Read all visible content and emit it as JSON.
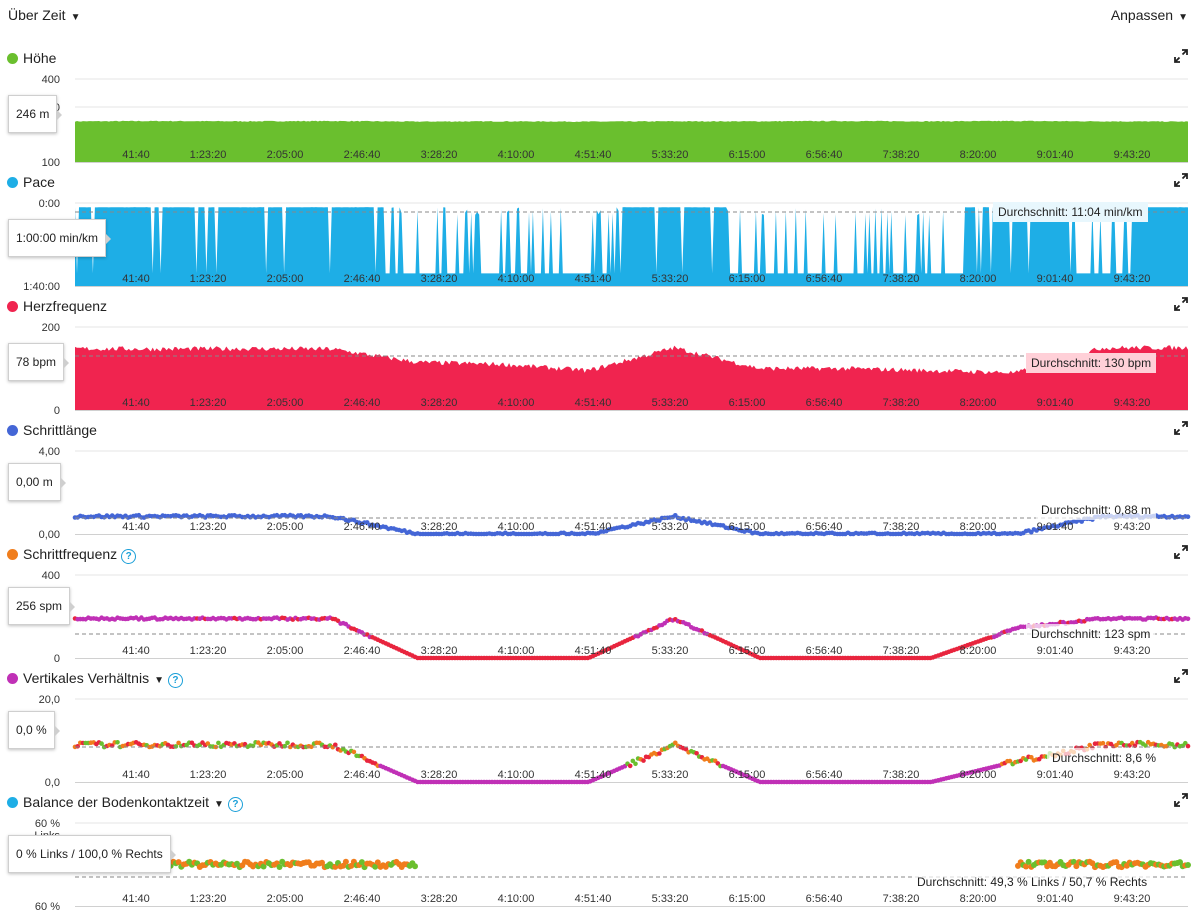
{
  "header": {
    "left_dropdown": "Über Zeit",
    "right_dropdown": "Anpassen"
  },
  "x_ticks": [
    "41:40",
    "1:23:20",
    "2:05:00",
    "2:46:40",
    "3:28:20",
    "4:10:00",
    "4:51:40",
    "5:33:20",
    "6:15:00",
    "6:56:40",
    "7:38:20",
    "8:20:00",
    "9:01:40",
    "9:43:20"
  ],
  "panels": [
    {
      "id": "hoehe",
      "title": "Höhe",
      "color": "#6abf2e",
      "ymax_label": "400",
      "ymid_label": "300",
      "ymin_label": "100",
      "ymin_extra": "",
      "tooltip": "246 m",
      "average": "",
      "help": false,
      "dropdown": false
    },
    {
      "id": "pace",
      "title": "Pace",
      "color": "#1eaee6",
      "ymax_label": "0:00",
      "ymid_label": "",
      "ymin_label": "1:40:00",
      "ymin_extra": "",
      "tooltip": "1:00:00 min/km",
      "average": "Durchschnitt: 11:04 min/km",
      "help": false,
      "dropdown": false
    },
    {
      "id": "hr",
      "title": "Herzfrequenz",
      "color": "#f0244f",
      "ymax_label": "200",
      "ymid_label": "",
      "ymin_label": "0",
      "ymin_extra": "",
      "tooltip": "78 bpm",
      "average": "Durchschnitt: 130 bpm",
      "help": false,
      "dropdown": false
    },
    {
      "id": "stride",
      "title": "Schrittlänge",
      "color": "#4466d6",
      "ymax_label": "4,00",
      "ymid_label": "",
      "ymin_label": "0,00",
      "ymin_extra": "",
      "tooltip": "0,00 m",
      "average": "Durchschnitt: 0,88 m",
      "help": false,
      "dropdown": false
    },
    {
      "id": "cadence",
      "title": "Schrittfrequenz",
      "color": "#f07d1c",
      "ymax_label": "400",
      "ymid_label": "",
      "ymin_label": "0",
      "ymin_extra": "",
      "tooltip": "256 spm",
      "average": "Durchschnitt: 123 spm",
      "help": true,
      "dropdown": false
    },
    {
      "id": "vratio",
      "title": "Vertikales Verhältnis",
      "color": "#c030b6",
      "ymax_label": "20,0",
      "ymid_label": "",
      "ymin_label": "0,0",
      "ymin_extra": "",
      "tooltip": "0,0 %",
      "average": "Durchschnitt: 8,6 %",
      "help": true,
      "dropdown": true
    },
    {
      "id": "gct",
      "title": "Balance der Bodenkontaktzeit",
      "color": "#1eaee6",
      "ymax_label": "60 %",
      "ymid_label": "Links",
      "ymin_label": "60 %",
      "ymin_extra": "",
      "tooltip": "0 % Links / 100,0 % Rechts",
      "average": "Durchschnitt: 49,3 % Links / 50,7 % Rechts",
      "help": true,
      "dropdown": true
    }
  ],
  "chart_data": [
    {
      "type": "area",
      "title": "Höhe",
      "ylabel": "",
      "ylim": [
        100,
        400
      ],
      "x": [
        "41:40",
        "1:23:20",
        "2:05:00",
        "2:46:40",
        "3:28:20",
        "4:10:00",
        "4:51:40",
        "5:33:20",
        "6:15:00",
        "6:56:40",
        "7:38:20",
        "8:20:00",
        "9:01:40",
        "9:43:20"
      ],
      "values": [
        247,
        248,
        247,
        248,
        246,
        247,
        246,
        247,
        247,
        248,
        247,
        248,
        247,
        246
      ]
    },
    {
      "type": "area",
      "title": "Pace",
      "ylabel": "",
      "ylim": [
        "0:00",
        "1:40:00"
      ],
      "x": [
        "41:40",
        "1:23:20",
        "2:05:00",
        "2:46:40",
        "3:28:20",
        "4:10:00",
        "4:51:40",
        "5:33:20",
        "6:15:00",
        "6:56:40",
        "7:38:20",
        "8:20:00",
        "9:01:40",
        "9:43:20"
      ],
      "values": [
        "0:10",
        "0:10",
        "0:10",
        "0:10",
        "1:20:00",
        "1:20:00",
        "1:20:00",
        "0:10",
        "1:20:00",
        "1:20:00",
        "1:20:00",
        "0:10",
        "1:20:00",
        "0:10"
      ]
    },
    {
      "type": "area",
      "title": "Herzfrequenz",
      "ylabel": "",
      "ylim": [
        0,
        200
      ],
      "x": [
        "41:40",
        "1:23:20",
        "2:05:00",
        "2:46:40",
        "3:28:20",
        "4:10:00",
        "4:51:40",
        "5:33:20",
        "6:15:00",
        "6:56:40",
        "7:38:20",
        "8:20:00",
        "9:01:40",
        "9:43:20"
      ],
      "values": [
        148,
        147,
        148,
        147,
        115,
        110,
        95,
        150,
        100,
        100,
        95,
        90,
        150,
        150
      ]
    },
    {
      "type": "scatter",
      "title": "Schrittlänge",
      "ylabel": "",
      "ylim": [
        0,
        4
      ],
      "x": [
        "41:40",
        "1:23:20",
        "2:05:00",
        "2:46:40",
        "3:28:20",
        "4:10:00",
        "4:51:40",
        "5:33:20",
        "6:15:00",
        "6:56:40",
        "7:38:20",
        "8:20:00",
        "9:01:40",
        "9:43:20"
      ],
      "values": [
        0.85,
        0.85,
        0.85,
        0.85,
        0.0,
        0.0,
        0.0,
        0.85,
        0.0,
        0.0,
        0.0,
        0.0,
        0.85,
        0.85
      ]
    },
    {
      "type": "scatter",
      "title": "Schrittfrequenz",
      "ylabel": "",
      "ylim": [
        0,
        400
      ],
      "x": [
        "41:40",
        "1:23:20",
        "2:05:00",
        "2:46:40",
        "3:28:20",
        "4:10:00",
        "4:51:40",
        "5:33:20",
        "6:15:00",
        "6:56:40",
        "7:38:20",
        "8:20:00",
        "9:01:40",
        "9:43:20"
      ],
      "values": [
        190,
        190,
        190,
        190,
        0,
        0,
        0,
        190,
        0,
        0,
        0,
        145,
        190,
        190
      ]
    },
    {
      "type": "scatter",
      "title": "Vertikales Verhältnis",
      "ylabel": "",
      "ylim": [
        0,
        20
      ],
      "x": [
        "41:40",
        "1:23:20",
        "2:05:00",
        "2:46:40",
        "3:28:20",
        "4:10:00",
        "4:51:40",
        "5:33:20",
        "6:15:00",
        "6:56:40",
        "7:38:20",
        "8:20:00",
        "9:01:40",
        "9:43:20"
      ],
      "values": [
        9,
        9,
        9,
        9,
        0,
        0,
        0,
        9,
        0,
        0,
        0,
        5,
        9,
        9
      ]
    },
    {
      "type": "scatter",
      "title": "Balance der Bodenkontaktzeit",
      "ylabel": "",
      "ylim": [
        -60,
        60
      ],
      "x": [
        "41:40",
        "1:23:20",
        "2:05:00",
        "2:46:40",
        "3:28:20",
        "4:10:00",
        "4:51:40",
        "5:33:20",
        "6:15:00",
        "6:56:40",
        "7:38:20",
        "8:20:00",
        "9:01:40",
        "9:43:20"
      ],
      "values": [
        50,
        50,
        50,
        50,
        50,
        null,
        null,
        50,
        null,
        null,
        null,
        50,
        50,
        50
      ]
    }
  ]
}
